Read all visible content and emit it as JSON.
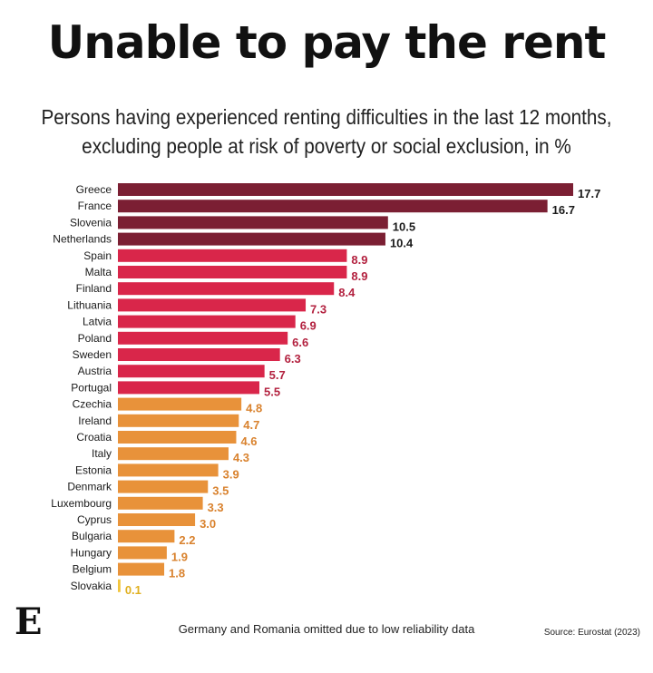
{
  "title": "Unable to pay the rent",
  "subtitle_line1": "Persons having experienced renting difficulties in the last 12 months,",
  "subtitle_line2": "excluding people at risk of poverty or social exclusion, in %",
  "logo": "E",
  "footnote": "Germany and Romania omitted due to low reliability data",
  "source": "Source: Eurostat (2023)",
  "colors": {
    "dark": "#7b1f33",
    "red": "#d9264a",
    "orange": "#e8923a",
    "yellow": "#f2c53d"
  },
  "chart_data": {
    "type": "bar",
    "orientation": "horizontal",
    "categories": [
      "Greece",
      "France",
      "Slovenia",
      "Netherlands",
      "Spain",
      "Malta",
      "Finland",
      "Lithuania",
      "Latvia",
      "Poland",
      "Sweden",
      "Austria",
      "Portugal",
      "Czechia",
      "Ireland",
      "Croatia",
      "Italy",
      "Estonia",
      "Denmark",
      "Luxembourg",
      "Cyprus",
      "Bulgaria",
      "Hungary",
      "Belgium",
      "Slovakia"
    ],
    "values": [
      17.7,
      16.7,
      10.5,
      10.4,
      8.9,
      8.9,
      8.4,
      7.3,
      6.9,
      6.6,
      6.3,
      5.7,
      5.5,
      4.8,
      4.7,
      4.6,
      4.3,
      3.9,
      3.5,
      3.3,
      3.0,
      2.2,
      1.9,
      1.8,
      0.1
    ],
    "value_labels": [
      "17.7",
      "16.7",
      "10.5",
      "10.4",
      "8.9",
      "8.9",
      "8.4",
      "7.3",
      "6.9",
      "6.6",
      "6.3",
      "5.7",
      "5.5",
      "4.8",
      "4.7",
      "4.6",
      "4.3",
      "3.9",
      "3.5",
      "3.3",
      "3.0",
      "2.2",
      "1.9",
      "1.8",
      "0.1"
    ],
    "color_groups": [
      "dark",
      "dark",
      "dark",
      "dark",
      "red",
      "red",
      "red",
      "red",
      "red",
      "red",
      "red",
      "red",
      "red",
      "orange",
      "orange",
      "orange",
      "orange",
      "orange",
      "orange",
      "orange",
      "orange",
      "orange",
      "orange",
      "orange",
      "yellow"
    ],
    "xlim": [
      0,
      17.7
    ],
    "grid": false,
    "legend": "none"
  }
}
